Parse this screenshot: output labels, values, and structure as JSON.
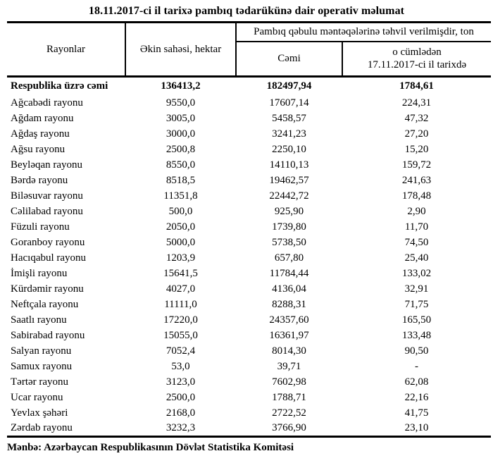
{
  "title": "18.11.2017-ci il tarixə pambıq tədarükünə dair operativ məlumat",
  "table": {
    "headers": {
      "regions": "Rayonlar",
      "sown_area": "Əkin sahəsi, hektar",
      "delivered_group": "Pambıq qəbulu məntəqələrinə təhvil verilmişdir, ton",
      "total": "Cəmi",
      "including_line1": "o cümlədən",
      "including_line2": "17.11.2017-ci il tarixdə"
    },
    "total_row": {
      "name": "Respublika üzrə cəmi",
      "sown_area": "136413,2",
      "delivered_total": "182497,94",
      "delivered_on_date": "1784,61"
    },
    "rows": [
      {
        "name": "Ağcabədi rayonu",
        "sown_area": "9550,0",
        "delivered_total": "17607,14",
        "delivered_on_date": "224,31"
      },
      {
        "name": "Ağdam rayonu",
        "sown_area": "3005,0",
        "delivered_total": "5458,57",
        "delivered_on_date": "47,32"
      },
      {
        "name": "Ağdaş rayonu",
        "sown_area": "3000,0",
        "delivered_total": "3241,23",
        "delivered_on_date": "27,20"
      },
      {
        "name": "Ağsu rayonu",
        "sown_area": "2500,8",
        "delivered_total": "2250,10",
        "delivered_on_date": "15,20"
      },
      {
        "name": "Beyləqan rayonu",
        "sown_area": "8550,0",
        "delivered_total": "14110,13",
        "delivered_on_date": "159,72"
      },
      {
        "name": "Bərdə rayonu",
        "sown_area": "8518,5",
        "delivered_total": "19462,57",
        "delivered_on_date": "241,63"
      },
      {
        "name": "Biləsuvar rayonu",
        "sown_area": "11351,8",
        "delivered_total": "22442,72",
        "delivered_on_date": "178,48"
      },
      {
        "name": "Cəlilabad rayonu",
        "sown_area": "500,0",
        "delivered_total": "925,90",
        "delivered_on_date": "2,90"
      },
      {
        "name": "Füzuli rayonu",
        "sown_area": "2050,0",
        "delivered_total": "1739,80",
        "delivered_on_date": "11,70"
      },
      {
        "name": "Goranboy rayonu",
        "sown_area": "5000,0",
        "delivered_total": "5738,50",
        "delivered_on_date": "74,50"
      },
      {
        "name": "Hacıqabul rayonu",
        "sown_area": "1203,9",
        "delivered_total": "657,80",
        "delivered_on_date": "25,40"
      },
      {
        "name": "İmişli rayonu",
        "sown_area": "15641,5",
        "delivered_total": "11784,44",
        "delivered_on_date": "133,02"
      },
      {
        "name": "Kürdəmir rayonu",
        "sown_area": "4027,0",
        "delivered_total": "4136,04",
        "delivered_on_date": "32,91"
      },
      {
        "name": "Neftçala rayonu",
        "sown_area": "11111,0",
        "delivered_total": "8288,31",
        "delivered_on_date": "71,75"
      },
      {
        "name": "Saatlı rayonu",
        "sown_area": "17220,0",
        "delivered_total": "24357,60",
        "delivered_on_date": "165,50"
      },
      {
        "name": "Sabirabad rayonu",
        "sown_area": "15055,0",
        "delivered_total": "16361,97",
        "delivered_on_date": "133,48"
      },
      {
        "name": "Salyan rayonu",
        "sown_area": "7052,4",
        "delivered_total": "8014,30",
        "delivered_on_date": "90,50"
      },
      {
        "name": "Samux rayonu",
        "sown_area": "53,0",
        "delivered_total": "39,71",
        "delivered_on_date": "-"
      },
      {
        "name": "Tərtər rayonu",
        "sown_area": "3123,0",
        "delivered_total": "7602,98",
        "delivered_on_date": "62,08"
      },
      {
        "name": "Ucar rayonu",
        "sown_area": "2500,0",
        "delivered_total": "1788,71",
        "delivered_on_date": "22,16"
      },
      {
        "name": "Yevlax şəhəri",
        "sown_area": "2168,0",
        "delivered_total": "2722,52",
        "delivered_on_date": "41,75"
      },
      {
        "name": "Zərdab rayonu",
        "sown_area": "3232,3",
        "delivered_total": "3766,90",
        "delivered_on_date": "23,10"
      }
    ]
  },
  "footer": "Mənbə: Azərbaycan Respublikasının Dövlət Statistika Komitəsi"
}
